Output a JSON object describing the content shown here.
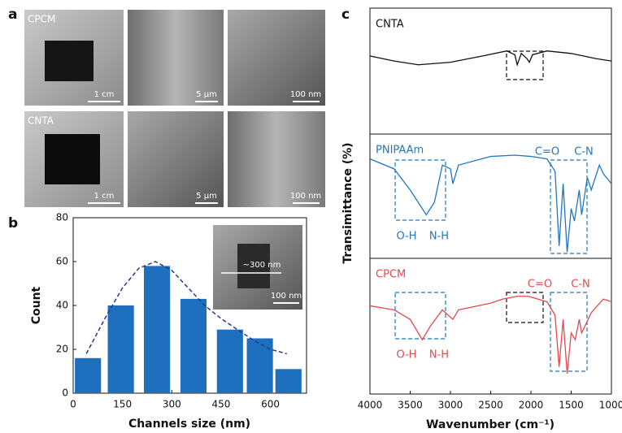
{
  "panel_a": {
    "letter": "a",
    "row1": {
      "label": "CPCM",
      "scales": [
        "1 cm",
        "5 μm",
        "100 nm"
      ]
    },
    "row2": {
      "label": "CNTA",
      "scales": [
        "1 cm",
        "5 μm",
        "100 nm"
      ]
    }
  },
  "chart_data": [
    {
      "type": "bar",
      "letter": "b",
      "x_label": "Channels size (nm)",
      "y_label": "Count",
      "x": [
        45,
        145,
        255,
        366,
        477,
        568,
        655
      ],
      "values": [
        16,
        40,
        58,
        43,
        29,
        25,
        11
      ],
      "color": "#1f6fbf",
      "fit": {
        "x": [
          40,
          100,
          150,
          200,
          250,
          300,
          350,
          400,
          450,
          500,
          550,
          600,
          650
        ],
        "values": [
          18,
          35,
          48,
          57,
          60,
          56,
          48,
          40,
          34,
          29,
          24,
          20,
          18
        ],
        "color": "#1f3c8f"
      },
      "inset": {
        "measure": "~300 nm",
        "scale": "100 nm"
      },
      "xlim": [
        0,
        710
      ],
      "ylim": [
        0,
        80
      ],
      "xticks": [
        0,
        150,
        300,
        450,
        600
      ],
      "yticks": [
        0,
        20,
        40,
        60,
        80
      ]
    },
    {
      "type": "line",
      "letter": "c",
      "x_label": "Wavenumber (cm⁻¹)",
      "y_label": "Transimittance (%)",
      "xlim": [
        4000,
        1000
      ],
      "xticks": [
        4000,
        3500,
        3000,
        2500,
        2000,
        1500,
        1000
      ],
      "ylim": [
        0,
        100
      ],
      "annotations": [
        "C=O",
        "C-N",
        "O-H",
        "N-H",
        "C=O",
        "C-N",
        "O-H",
        "N-H"
      ],
      "series": [
        {
          "name": "CNTA",
          "color": "#111111",
          "x": [
            4000,
            3700,
            3400,
            3000,
            2600,
            2300,
            2200,
            2170,
            2120,
            2050,
            2020,
            1980,
            1800,
            1500,
            1200,
            1000
          ],
          "values": [
            62,
            58,
            55,
            57,
            62,
            66,
            63,
            55,
            64,
            60,
            57,
            63,
            66,
            64,
            60,
            58
          ]
        },
        {
          "name": "PNIPAAm",
          "color": "#1f77c4",
          "x": [
            4000,
            3700,
            3500,
            3300,
            3200,
            3100,
            3000,
            2970,
            2900,
            2500,
            2200,
            2000,
            1800,
            1700,
            1650,
            1600,
            1550,
            1500,
            1460,
            1400,
            1370,
            1300,
            1250,
            1150,
            1100,
            1000
          ],
          "values": [
            80,
            72,
            55,
            35,
            45,
            75,
            72,
            60,
            75,
            82,
            83,
            82,
            80,
            70,
            10,
            60,
            5,
            40,
            30,
            55,
            35,
            65,
            55,
            75,
            68,
            60
          ]
        },
        {
          "name": "CPCM",
          "color": "#e8474f",
          "x": [
            4000,
            3700,
            3500,
            3350,
            3250,
            3100,
            2970,
            2900,
            2500,
            2350,
            2170,
            2030,
            1800,
            1700,
            1650,
            1600,
            1550,
            1500,
            1450,
            1400,
            1370,
            1250,
            1100,
            1000
          ],
          "values": [
            65,
            62,
            55,
            40,
            50,
            62,
            55,
            62,
            67,
            70,
            72,
            72,
            68,
            58,
            20,
            55,
            15,
            45,
            40,
            55,
            45,
            60,
            70,
            68
          ]
        }
      ]
    }
  ]
}
